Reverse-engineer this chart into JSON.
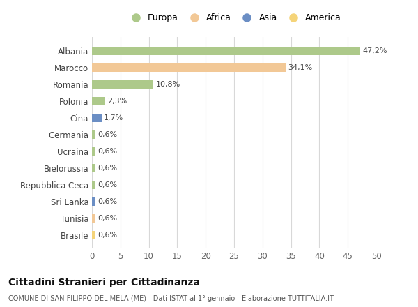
{
  "categories": [
    "Albania",
    "Marocco",
    "Romania",
    "Polonia",
    "Cina",
    "Germania",
    "Ucraina",
    "Bielorussia",
    "Repubblica Ceca",
    "Sri Lanka",
    "Tunisia",
    "Brasile"
  ],
  "values": [
    47.2,
    34.1,
    10.8,
    2.3,
    1.7,
    0.6,
    0.6,
    0.6,
    0.6,
    0.6,
    0.6,
    0.6
  ],
  "labels": [
    "47,2%",
    "34,1%",
    "10,8%",
    "2,3%",
    "1,7%",
    "0,6%",
    "0,6%",
    "0,6%",
    "0,6%",
    "0,6%",
    "0,6%",
    "0,6%"
  ],
  "colors": [
    "#adc98a",
    "#f2c896",
    "#adc98a",
    "#adc98a",
    "#6b8ec4",
    "#adc98a",
    "#adc98a",
    "#adc98a",
    "#adc98a",
    "#6b8ec4",
    "#f2c896",
    "#f5d479"
  ],
  "legend_labels": [
    "Europa",
    "Africa",
    "Asia",
    "America"
  ],
  "legend_colors": [
    "#adc98a",
    "#f2c896",
    "#6b8ec4",
    "#f5d479"
  ],
  "xlim": [
    0,
    50
  ],
  "xticks": [
    0,
    5,
    10,
    15,
    20,
    25,
    30,
    35,
    40,
    45,
    50
  ],
  "title": "Cittadini Stranieri per Cittadinanza",
  "subtitle": "COMUNE DI SAN FILIPPO DEL MELA (ME) - Dati ISTAT al 1° gennaio - Elaborazione TUTTITALIA.IT",
  "bg_color": "#ffffff",
  "grid_color": "#d8d8d8",
  "bar_height": 0.5,
  "label_fontsize": 8,
  "ytick_fontsize": 8.5,
  "xtick_fontsize": 8.5
}
